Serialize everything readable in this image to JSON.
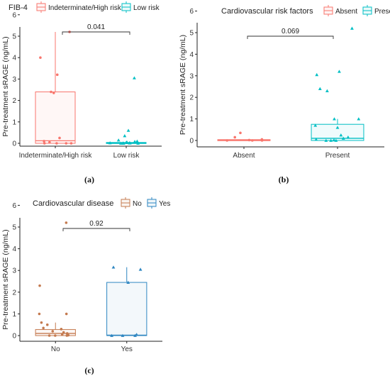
{
  "chart_data": [
    {
      "type": "box",
      "panel_label": "(a)",
      "legend": {
        "title": "FIB-4",
        "entries": [
          {
            "label": "Indeterminate/High risk",
            "color": "#F8766D"
          },
          {
            "label": "Low risk",
            "color": "#00BFC4"
          }
        ]
      },
      "ylabel": "Pre-treatment sRAGE (ng/mL)",
      "ylim": [
        -0.3,
        6.3
      ],
      "yticks": [
        0,
        1,
        2,
        3,
        4,
        5,
        6
      ],
      "categories": [
        "Indeterminate/High risk",
        "Low risk"
      ],
      "groups": [
        {
          "box": {
            "q1": 0.0,
            "median": 0.12,
            "q3": 2.4,
            "whisker_low": 0.0,
            "whisker_high": 5.2
          },
          "points": [
            5.2,
            4.0,
            3.2,
            2.4,
            2.35,
            0.25,
            0.1,
            0.05,
            0.0,
            0.0,
            0.0,
            0.0
          ]
        },
        {
          "box": {
            "q1": 0.0,
            "median": 0.02,
            "q3": 0.04,
            "whisker_low": 0.0,
            "whisker_high": 0.08
          },
          "points": [
            3.05,
            0.6,
            0.35,
            0.15,
            0.1,
            0.08,
            0.05,
            0.05,
            0.03,
            0.02,
            0.02,
            0.01,
            0.01,
            0.0,
            0.0,
            0.0
          ]
        }
      ],
      "comparison": {
        "p": "0.041"
      }
    },
    {
      "type": "box",
      "panel_label": "(b)",
      "legend": {
        "title": "Cardiovascular risk factors",
        "entries": [
          {
            "label": "Absent",
            "color": "#F8766D"
          },
          {
            "label": "Present",
            "color": "#00BFC4"
          }
        ]
      },
      "ylabel": "Pre-treatment sRAGE (ng/mL)",
      "ylim": [
        -0.3,
        6.3
      ],
      "yticks": [
        0,
        1,
        2,
        3,
        4,
        5,
        6
      ],
      "categories": [
        "Absent",
        "Present"
      ],
      "groups": [
        {
          "box": {
            "q1": 0.0,
            "median": 0.01,
            "q3": 0.04,
            "whisker_low": 0.0,
            "whisker_high": 0.05
          },
          "points": [
            0.35,
            0.15,
            0.05,
            0.02,
            0.0,
            0.0,
            0.0
          ]
        },
        {
          "box": {
            "q1": 0.0,
            "median": 0.1,
            "q3": 0.75,
            "whisker_low": 0.0,
            "whisker_high": 1.0
          },
          "points": [
            5.2,
            3.2,
            3.05,
            2.4,
            2.3,
            1.0,
            1.0,
            0.7,
            0.6,
            0.25,
            0.15,
            0.1,
            0.05,
            0.02,
            0.0,
            0.0,
            0.0
          ]
        }
      ],
      "comparison": {
        "p": "0.069"
      }
    },
    {
      "type": "box",
      "panel_label": "(c)",
      "legend": {
        "title": "Cardiovascular disease",
        "entries": [
          {
            "label": "No",
            "color": "#C47A4F"
          },
          {
            "label": "Yes",
            "color": "#2E86C1"
          }
        ]
      },
      "ylabel": "Pre-treatment sRAGE (ng/mL)",
      "ylim": [
        -0.3,
        6.3
      ],
      "yticks": [
        0,
        1,
        2,
        3,
        4,
        5,
        6
      ],
      "categories": [
        "No",
        "Yes"
      ],
      "groups": [
        {
          "box": {
            "q1": 0.0,
            "median": 0.1,
            "q3": 0.28,
            "whisker_low": 0.0,
            "whisker_high": 0.6
          },
          "points": [
            5.2,
            2.3,
            1.0,
            1.0,
            0.6,
            0.5,
            0.35,
            0.3,
            0.2,
            0.15,
            0.1,
            0.05,
            0.02,
            0.0,
            0.0,
            0.0
          ]
        },
        {
          "box": {
            "q1": 0.0,
            "median": 0.02,
            "q3": 2.45,
            "whisker_low": 0.0,
            "whisker_high": 3.15
          },
          "points": [
            3.15,
            3.05,
            2.45,
            0.05,
            0.0,
            0.0,
            0.0
          ]
        }
      ],
      "comparison": {
        "p": "0.92"
      }
    }
  ]
}
